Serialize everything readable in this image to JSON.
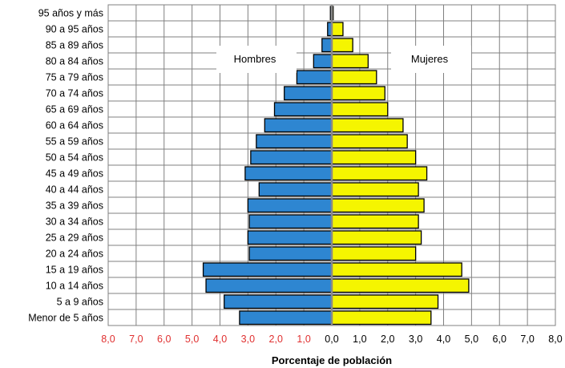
{
  "chart_data": {
    "type": "bar",
    "orientation": "horizontal",
    "subtype": "population-pyramid",
    "categories": [
      "95 años y más",
      "90 a 95 años",
      "85 a 89 años",
      "80 a 84 años",
      "75 a 79 años",
      "70 a 74 años",
      "65 a 69 años",
      "60 a 64 años",
      "55 a 59 años",
      "50 a 54 años",
      "45 a 49 años",
      "40 a 44 años",
      "35 a 39 años",
      "30 a 34 años",
      "25 a 29 años",
      "20 a 24 años",
      "15 a 19 años",
      "10 a 14 años",
      "5 a 9 años",
      "Menor de 5 años"
    ],
    "series": [
      {
        "name": "Hombres",
        "side": "left",
        "color": "#2E86D1",
        "values": [
          0.05,
          0.15,
          0.35,
          0.65,
          1.25,
          1.7,
          2.05,
          2.4,
          2.7,
          2.9,
          3.1,
          2.6,
          3.0,
          2.95,
          3.0,
          2.95,
          4.6,
          4.5,
          3.85,
          3.3
        ]
      },
      {
        "name": "Mujeres",
        "side": "right",
        "color": "#F5F500",
        "values": [
          0.05,
          0.4,
          0.75,
          1.3,
          1.6,
          1.9,
          2.0,
          2.55,
          2.7,
          3.0,
          3.4,
          3.1,
          3.3,
          3.1,
          3.2,
          3.0,
          4.65,
          4.9,
          3.8,
          3.55
        ]
      }
    ],
    "x_ticks": [
      "8,0",
      "7,0",
      "6,0",
      "5,0",
      "4,0",
      "3,0",
      "2,0",
      "1,0",
      "0,0",
      "1,0",
      "2,0",
      "3,0",
      "4,0",
      "5,0",
      "6,0",
      "7,0",
      "8,0"
    ],
    "left_tick_color": "#E03030",
    "right_tick_color": "#000000",
    "xlim": [
      -8,
      8
    ],
    "xlabel": "Porcentaje de población",
    "ylabel": "",
    "title": "",
    "grid": true,
    "legend_placement": "inside-top"
  }
}
